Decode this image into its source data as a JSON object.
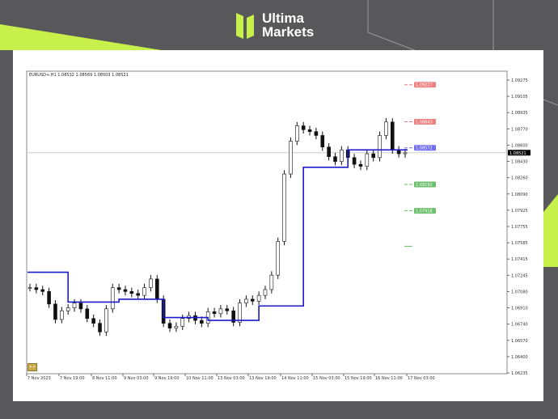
{
  "brand": {
    "line1": "Ultima",
    "line2": "Markets",
    "accent": "#c8f04a"
  },
  "header": {
    "symbol_info": "EURUSD+,H1  1.08532 1.08569 1.08503 1.08521"
  },
  "nav_button": ">>",
  "chart_data": {
    "type": "candlestick",
    "symbol": "EURUSD+",
    "timeframe": "H1",
    "ylim": [
      1.06235,
      1.09275
    ],
    "y_ticks": [
      "1.09275",
      "1.09105",
      "1.08935",
      "1.08770",
      "1.08600",
      "1.08430",
      "1.08260",
      "1.08090",
      "1.07925",
      "1.07755",
      "1.07585",
      "1.07415",
      "1.07245",
      "1.07080",
      "1.06910",
      "1.06740",
      "1.06570",
      "1.06400",
      "1.06235"
    ],
    "x_ticks": [
      "7 Nov 2023",
      "7 Nov 19:00",
      "8 Nov 11:00",
      "9 Nov 03:00",
      "9 Nov 19:00",
      "10 Nov 11:00",
      "13 Nov 03:00",
      "13 Nov 19:00",
      "14 Nov 11:00",
      "15 Nov 03:00",
      "15 Nov 19:00",
      "16 Nov 11:00",
      "17 Nov 03:00"
    ],
    "current_price": "1.08521",
    "closes": [
      1.0712,
      1.071,
      1.0708,
      1.0695,
      1.0679,
      1.0688,
      1.0691,
      1.0696,
      1.069,
      1.068,
      1.0675,
      1.0666,
      1.069,
      1.0712,
      1.071,
      1.0708,
      1.0706,
      1.0704,
      1.0712,
      1.0721,
      1.07,
      1.0675,
      1.067,
      1.0672,
      1.068,
      1.0683,
      1.0678,
      1.0675,
      1.0687,
      1.0685,
      1.069,
      1.0688,
      1.0676,
      1.0696,
      1.07,
      1.0698,
      1.0704,
      1.071,
      1.0725,
      1.076,
      1.083,
      1.0864,
      1.088,
      1.0876,
      1.0874,
      1.087,
      1.0858,
      1.0848,
      1.0843,
      1.0855,
      1.0847,
      1.084,
      1.0838,
      1.0851,
      1.0847,
      1.087,
      1.0884,
      1.0855,
      1.0851,
      1.0852
    ],
    "step_line": {
      "color": "#1a1acc",
      "levels": [
        [
          0,
          6,
          1.0728
        ],
        [
          6,
          14,
          1.0697
        ],
        [
          14,
          21,
          1.07
        ],
        [
          21,
          28,
          1.0681
        ],
        [
          28,
          36,
          1.0678
        ],
        [
          36,
          43,
          1.0693
        ],
        [
          43,
          50,
          1.0837
        ],
        [
          50,
          60,
          1.0855
        ]
      ]
    },
    "levels": [
      {
        "label": "1.09227",
        "value": 1.09227,
        "color": "#f08080"
      },
      {
        "label": "1.08843",
        "value": 1.08843,
        "color": "#f08080"
      },
      {
        "label": "1.08572",
        "value": 1.08572,
        "color": "#7070f0"
      },
      {
        "label": "1.08192",
        "value": 1.08192,
        "color": "#6cbf6c"
      },
      {
        "label": "1.07918",
        "value": 1.07918,
        "color": "#6cbf6c"
      },
      {
        "label": "",
        "value": 1.0755,
        "color": "#6cbf6c"
      }
    ]
  }
}
